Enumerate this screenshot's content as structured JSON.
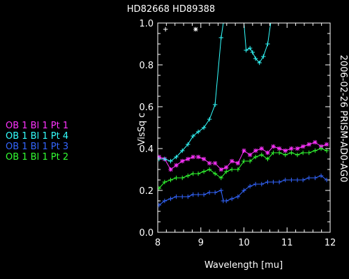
{
  "header": {
    "title": "HD82668   HD89388"
  },
  "side_label": "2006-02-26 PRISM-AD0-AG0",
  "legend": [
    {
      "label": "OB  1  Bl  1  Pt  1",
      "color": "#ff33ff"
    },
    {
      "label": "OB  1  Bl  1  Pt  4",
      "color": "#33ffff"
    },
    {
      "label": "OB  1  Bl  1  Pt  3",
      "color": "#3366ff"
    },
    {
      "label": "OB  1  Bl  1  Pt  2",
      "color": "#33ff33"
    }
  ],
  "chart_data": {
    "type": "line",
    "title": "HD82668   HD89388",
    "xlabel": "Wavelength [mu]",
    "ylabel": "VisSq c",
    "xlim": [
      8,
      12
    ],
    "ylim": [
      0.0,
      1.0
    ],
    "xticks": [
      "8",
      "9",
      "10",
      "11",
      "12"
    ],
    "yticks": [
      "0.0",
      "0.2",
      "0.4",
      "0.6",
      "0.8",
      "1.0"
    ],
    "grid": false,
    "series": [
      {
        "name": "OB  1  Bl  1  Pt  1",
        "color": "#ff33ff",
        "marker": "asterisk",
        "x": [
          8.03,
          8.16,
          8.3,
          8.43,
          8.57,
          8.7,
          8.82,
          8.94,
          9.07,
          9.2,
          9.33,
          9.47,
          9.59,
          9.72,
          9.86,
          10.0,
          10.14,
          10.27,
          10.41,
          10.55,
          10.68,
          10.82,
          10.96,
          11.1,
          11.24,
          11.37,
          11.51,
          11.65,
          11.79,
          11.92
        ],
        "y": [
          0.36,
          0.35,
          0.3,
          0.32,
          0.34,
          0.35,
          0.36,
          0.36,
          0.35,
          0.33,
          0.33,
          0.3,
          0.31,
          0.34,
          0.33,
          0.39,
          0.37,
          0.39,
          0.4,
          0.38,
          0.41,
          0.4,
          0.39,
          0.4,
          0.4,
          0.41,
          0.42,
          0.43,
          0.41,
          0.42
        ]
      },
      {
        "name": "OB  1  Bl  1  Pt  4",
        "color": "#33ffff",
        "marker": "plus",
        "x": [
          8.03,
          8.16,
          8.3,
          8.43,
          8.57,
          8.7,
          8.82,
          8.94,
          9.07,
          9.2,
          9.33,
          9.47,
          9.52,
          10.0,
          10.05,
          10.14,
          10.2,
          10.27,
          10.36,
          10.45,
          10.55,
          10.62
        ],
        "y": [
          0.35,
          0.35,
          0.34,
          0.36,
          0.39,
          0.42,
          0.46,
          0.48,
          0.5,
          0.54,
          0.61,
          0.93,
          1.0,
          1.0,
          0.87,
          0.88,
          0.86,
          0.83,
          0.81,
          0.84,
          0.9,
          1.0
        ]
      },
      {
        "name": "OB  1  Bl  1  Pt  3",
        "color": "#3366ff",
        "marker": "plus",
        "x": [
          8.03,
          8.16,
          8.3,
          8.43,
          8.57,
          8.7,
          8.82,
          8.94,
          9.07,
          9.2,
          9.33,
          9.47,
          9.52,
          9.59,
          9.72,
          9.86,
          10.0,
          10.14,
          10.27,
          10.41,
          10.55,
          10.68,
          10.82,
          10.96,
          11.1,
          11.24,
          11.37,
          11.51,
          11.65,
          11.79,
          11.92
        ],
        "y": [
          0.13,
          0.15,
          0.16,
          0.17,
          0.17,
          0.17,
          0.18,
          0.18,
          0.18,
          0.19,
          0.19,
          0.2,
          0.15,
          0.15,
          0.16,
          0.17,
          0.2,
          0.22,
          0.23,
          0.23,
          0.24,
          0.24,
          0.24,
          0.25,
          0.25,
          0.25,
          0.25,
          0.26,
          0.26,
          0.27,
          0.25
        ]
      },
      {
        "name": "OB  1  Bl  1  Pt  2",
        "color": "#33ff33",
        "marker": "plus",
        "x": [
          8.03,
          8.16,
          8.3,
          8.43,
          8.57,
          8.7,
          8.82,
          8.94,
          9.07,
          9.2,
          9.33,
          9.47,
          9.59,
          9.72,
          9.86,
          10.0,
          10.14,
          10.27,
          10.41,
          10.55,
          10.68,
          10.82,
          10.96,
          11.1,
          11.24,
          11.37,
          11.51,
          11.65,
          11.79,
          11.92
        ],
        "y": [
          0.21,
          0.24,
          0.25,
          0.26,
          0.26,
          0.27,
          0.28,
          0.28,
          0.29,
          0.3,
          0.28,
          0.26,
          0.29,
          0.3,
          0.3,
          0.34,
          0.34,
          0.36,
          0.37,
          0.35,
          0.38,
          0.38,
          0.37,
          0.38,
          0.37,
          0.38,
          0.38,
          0.39,
          0.4,
          0.39
        ]
      }
    ],
    "annotations": [
      {
        "marker": "plus",
        "color": "#ffffff",
        "x": 8.18,
        "y": 0.97
      },
      {
        "marker": "asterisk",
        "color": "#ffffff",
        "x": 8.88,
        "y": 0.97
      }
    ]
  }
}
